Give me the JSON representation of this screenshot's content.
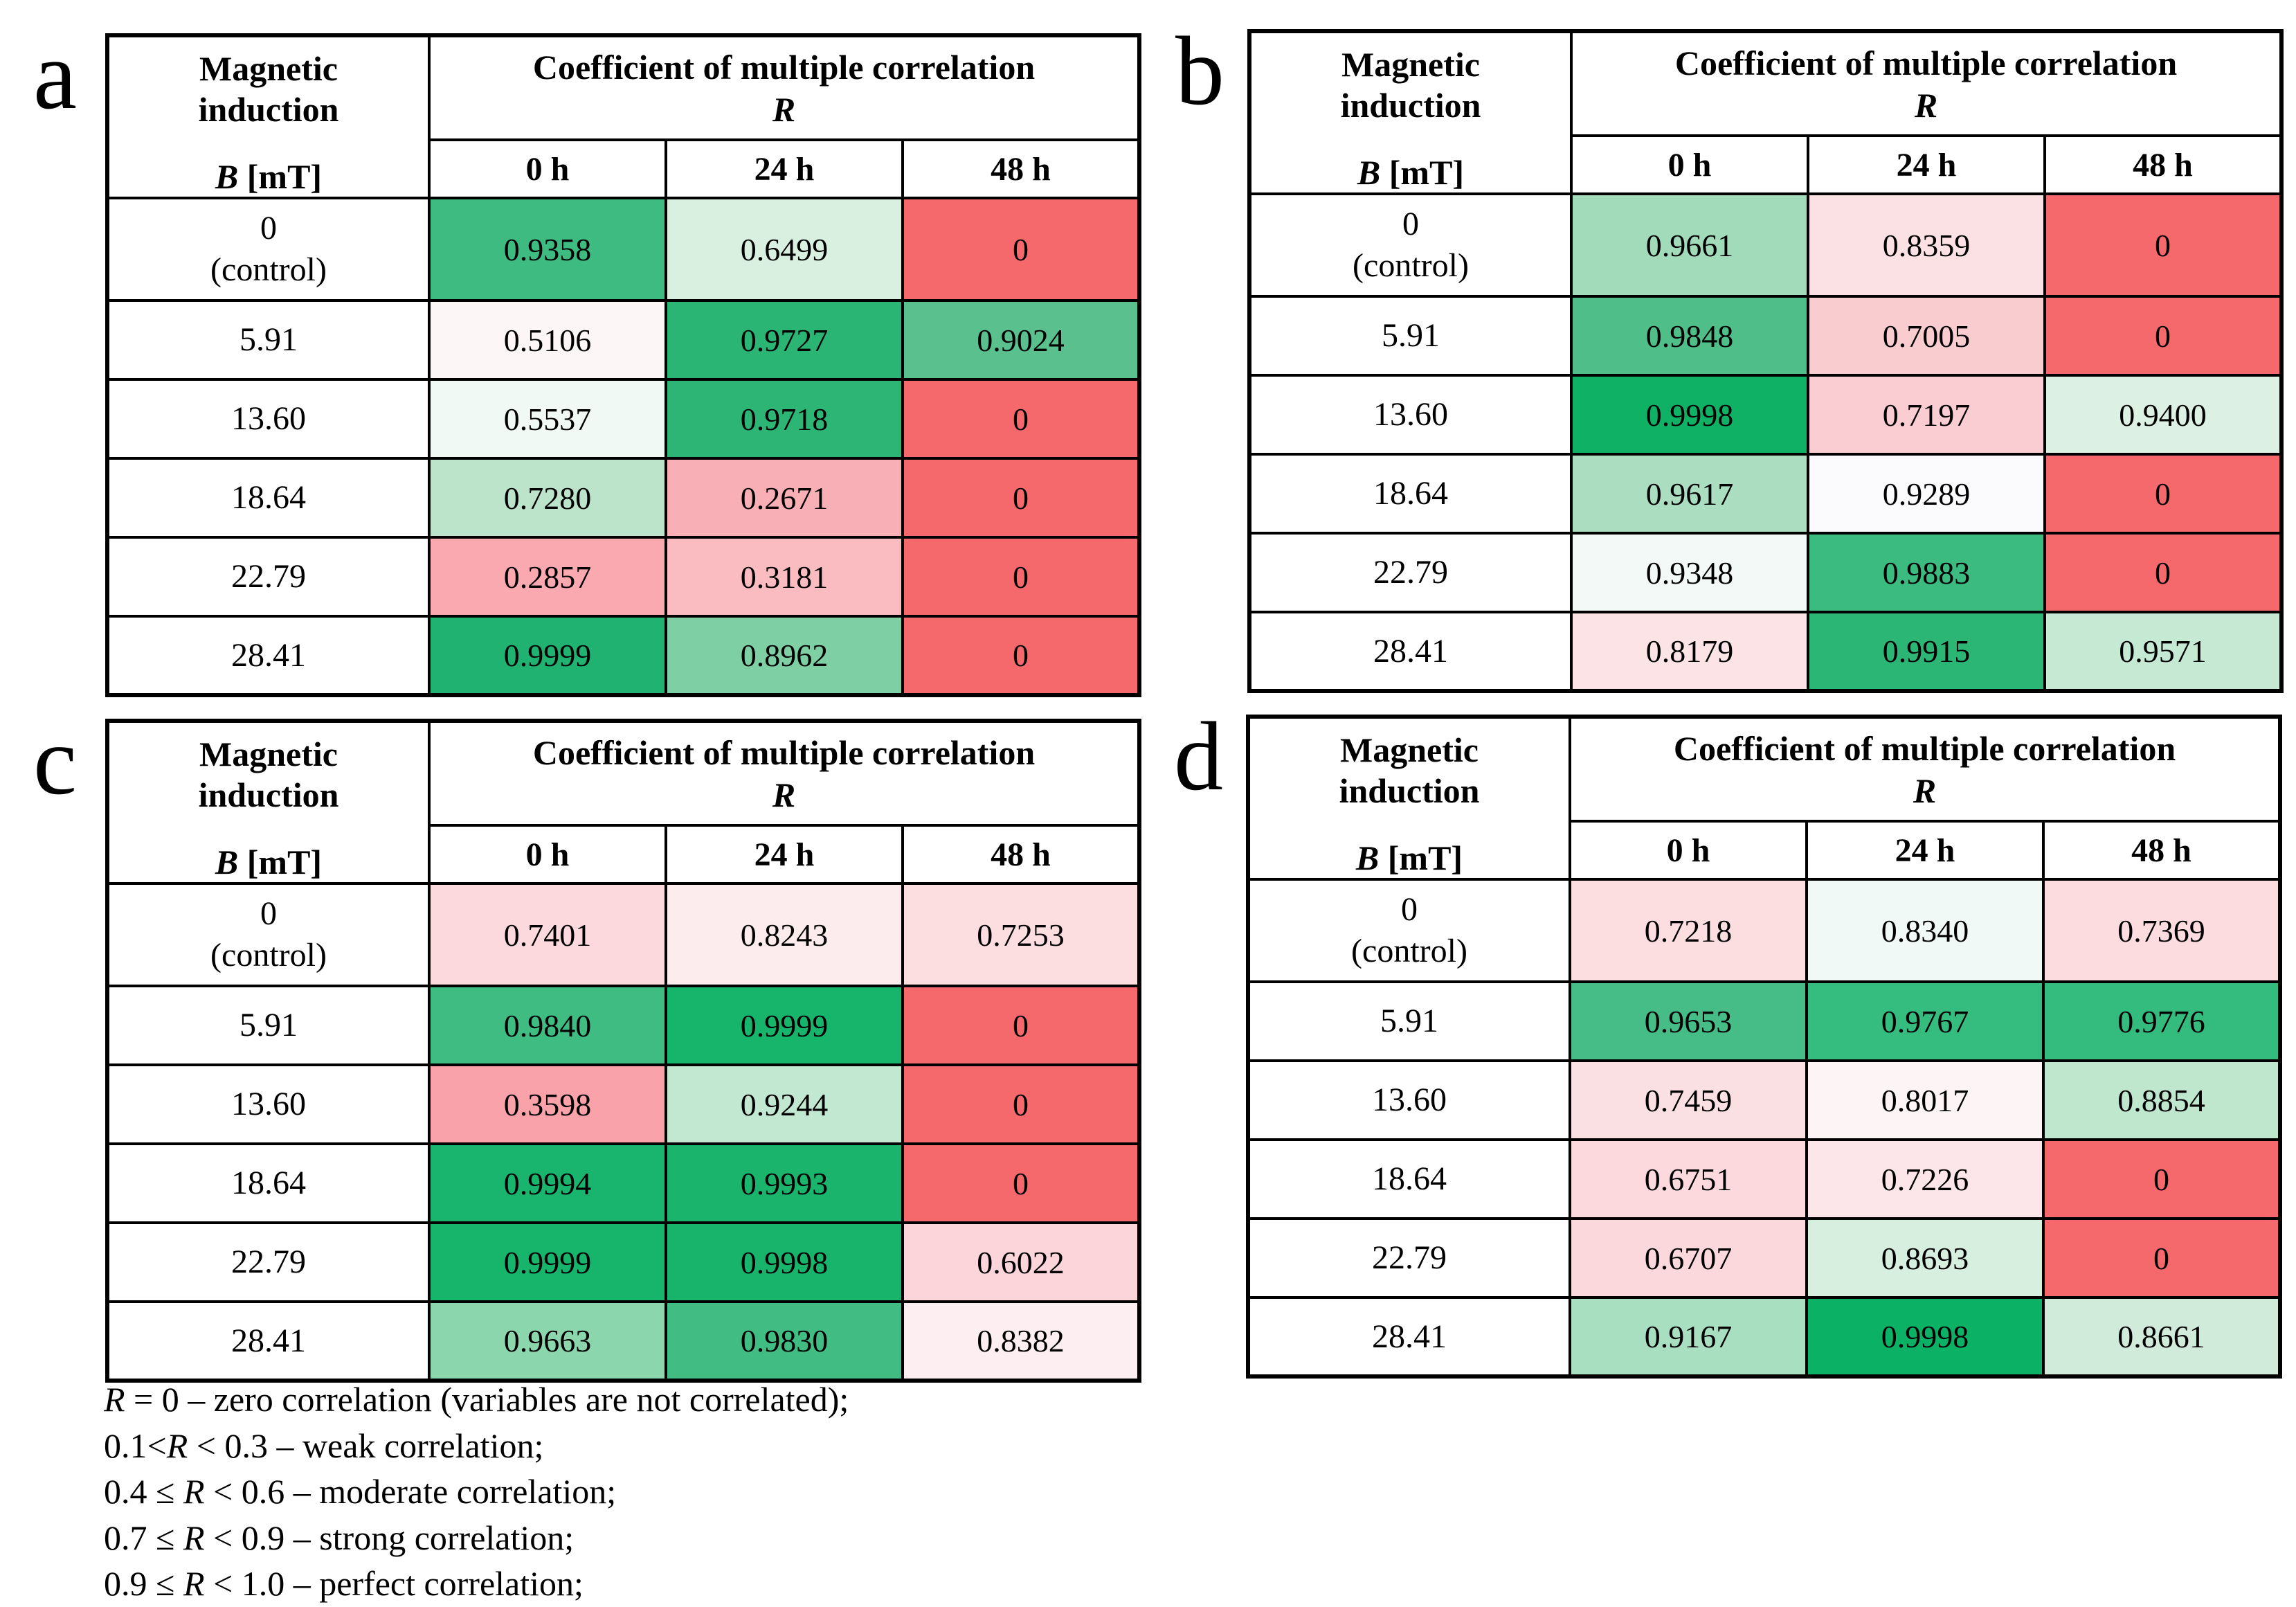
{
  "figure": {
    "background": "#ffffff",
    "panel_labels": [
      "a",
      "b",
      "c",
      "d"
    ]
  },
  "table_header": {
    "row_header_top": "Magnetic\ninduction",
    "row_header_bottom": "B [mT]",
    "title_line1": "Coefficient of multiple correlation",
    "title_line2": "R",
    "columns": [
      "0 h",
      "24 h",
      "48 h"
    ]
  },
  "chart_data": [
    {
      "type": "heatmap",
      "panel_label": "a",
      "title": "Coefficient of multiple correlation R",
      "row_label_header": "Magnetic induction B [mT]",
      "columns": [
        "0 h",
        "24 h",
        "48 h"
      ],
      "row_labels": [
        "0\n(control)",
        "5.91",
        "13.60",
        "18.64",
        "22.79",
        "28.41"
      ],
      "values": [
        [
          0.9358,
          0.6499,
          0
        ],
        [
          0.5106,
          0.9727,
          0.9024
        ],
        [
          0.5537,
          0.9718,
          0
        ],
        [
          0.728,
          0.2671,
          0
        ],
        [
          0.2857,
          0.3181,
          0
        ],
        [
          0.9999,
          0.8962,
          0
        ]
      ],
      "display": [
        [
          "0.9358",
          "0.6499",
          "0"
        ],
        [
          "0.5106",
          "0.9727",
          "0.9024"
        ],
        [
          "0.5537",
          "0.9718",
          "0"
        ],
        [
          "0.7280",
          "0.2671",
          "0"
        ],
        [
          "0.2857",
          "0.3181",
          "0"
        ],
        [
          "0.9999",
          "0.8962",
          "0"
        ]
      ],
      "cell_colors": [
        [
          "#3EBB81",
          "#D9F0E1",
          "#F5696C"
        ],
        [
          "#FDF6F7",
          "#2BB574",
          "#5AC18E"
        ],
        [
          "#F1F9F4",
          "#2CB575",
          "#F5696C"
        ],
        [
          "#BCE4CB",
          "#F9AFB6",
          "#F5696C"
        ],
        [
          "#F9A9AF",
          "#FABCC1",
          "#F5696C"
        ],
        [
          "#20B271",
          "#7ED0A4",
          "#F5696C"
        ]
      ]
    },
    {
      "type": "heatmap",
      "panel_label": "b",
      "title": "Coefficient of multiple correlation R",
      "row_label_header": "Magnetic induction B [mT]",
      "columns": [
        "0 h",
        "24 h",
        "48 h"
      ],
      "row_labels": [
        "0\n(control)",
        "5.91",
        "13.60",
        "18.64",
        "22.79",
        "28.41"
      ],
      "values": [
        [
          0.9661,
          0.8359,
          0
        ],
        [
          0.9848,
          0.7005,
          0
        ],
        [
          0.9998,
          0.7197,
          0.94
        ],
        [
          0.9617,
          0.9289,
          0
        ],
        [
          0.9348,
          0.9883,
          0
        ],
        [
          0.8179,
          0.9915,
          0.9571
        ]
      ],
      "display": [
        [
          "0.9661",
          "0.8359",
          "0"
        ],
        [
          "0.9848",
          "0.7005",
          "0"
        ],
        [
          "0.9998",
          "0.7197",
          "0.9400"
        ],
        [
          "0.9617",
          "0.9289",
          "0"
        ],
        [
          "0.9348",
          "0.9883",
          "0"
        ],
        [
          "0.8179",
          "0.9915",
          "0.9571"
        ]
      ],
      "cell_colors": [
        [
          "#A1DBBA",
          "#FBE0E4",
          "#F5696C"
        ],
        [
          "#50BE88",
          "#F9CCD0",
          "#F5696C"
        ],
        [
          "#0FB164",
          "#F9CDD1",
          "#DCF0E4"
        ],
        [
          "#ABDEC1",
          "#FBFAFC",
          "#F5696C"
        ],
        [
          "#F2F9F6",
          "#3CBB80",
          "#F5696C"
        ],
        [
          "#FBE3E6",
          "#2CB676",
          "#C6E9D3"
        ]
      ]
    },
    {
      "type": "heatmap",
      "panel_label": "c",
      "title": "Coefficient of multiple correlation R",
      "row_label_header": "Magnetic induction B [mT]",
      "columns": [
        "0 h",
        "24 h",
        "48 h"
      ],
      "row_labels": [
        "0\n(control)",
        "5.91",
        "13.60",
        "18.64",
        "22.79",
        "28.41"
      ],
      "values": [
        [
          0.7401,
          0.8243,
          0.7253
        ],
        [
          0.984,
          0.9999,
          0
        ],
        [
          0.3598,
          0.9244,
          0
        ],
        [
          0.9994,
          0.9993,
          0
        ],
        [
          0.9999,
          0.9998,
          0.6022
        ],
        [
          0.9663,
          0.983,
          0.8382
        ]
      ],
      "display": [
        [
          "0.7401",
          "0.8243",
          "0.7253"
        ],
        [
          "0.9840",
          "0.9999",
          "0"
        ],
        [
          "0.3598",
          "0.9244",
          "0"
        ],
        [
          "0.9994",
          "0.9993",
          "0"
        ],
        [
          "0.9999",
          "0.9998",
          "0.6022"
        ],
        [
          "0.9663",
          "0.9830",
          "0.8382"
        ]
      ],
      "cell_colors": [
        [
          "#FBD9DD",
          "#FDECEE",
          "#FCDDE0"
        ],
        [
          "#3FBC82",
          "#17B46C",
          "#F5696C"
        ],
        [
          "#F9A2A9",
          "#C2E8D1",
          "#F5696C"
        ],
        [
          "#19B46D",
          "#1AB46D",
          "#F5696C"
        ],
        [
          "#17B46C",
          "#18B46C",
          "#FBD5D9"
        ],
        [
          "#8CD6AD",
          "#41BC83",
          "#FDEFF1"
        ]
      ]
    },
    {
      "type": "heatmap",
      "panel_label": "d",
      "title": "Coefficient of multiple correlation R",
      "row_label_header": "Magnetic induction B [mT]",
      "columns": [
        "0 h",
        "24 h",
        "48 h"
      ],
      "row_labels": [
        "0\n(control)",
        "5.91",
        "13.60",
        "18.64",
        "22.79",
        "28.41"
      ],
      "values": [
        [
          0.7218,
          0.834,
          0.7369
        ],
        [
          0.9653,
          0.9767,
          0.9776
        ],
        [
          0.7459,
          0.8017,
          0.8854
        ],
        [
          0.6751,
          0.7226,
          0
        ],
        [
          0.6707,
          0.8693,
          0
        ],
        [
          0.9167,
          0.9998,
          0.8661
        ]
      ],
      "display": [
        [
          "0.7218",
          "0.8340",
          "0.7369"
        ],
        [
          "0.9653",
          "0.9767",
          "0.9776"
        ],
        [
          "0.7459",
          "0.8017",
          "0.8854"
        ],
        [
          "0.6751",
          "0.7226",
          "0"
        ],
        [
          "0.6707",
          "0.8693",
          "0"
        ],
        [
          "0.9167",
          "0.9998",
          "0.8661"
        ]
      ],
      "cell_colors": [
        [
          "#FCDEE1",
          "#F1F9F7",
          "#FCDCDF"
        ],
        [
          "#46BD86",
          "#35BD80",
          "#34BC7F"
        ],
        [
          "#FBE0E3",
          "#FDF4F5",
          "#BFE7CE"
        ],
        [
          "#FBD9DC",
          "#FCE6E9",
          "#F5696C"
        ],
        [
          "#FBD8DB",
          "#D7EFDF",
          "#F5696C"
        ],
        [
          "#A9DFC1",
          "#0BB265",
          "#D0EBDA"
        ]
      ]
    }
  ],
  "legend": {
    "lines": [
      "R = 0 – zero correlation (variables are not correlated);",
      "0.1<R < 0.3 – weak correlation;",
      "0.4 ≤ R < 0.6 – moderate correlation;",
      "0.7 ≤ R < 0.9 – strong correlation;",
      "0.9 ≤ R < 1.0 – perfect correlation;"
    ]
  },
  "colors": {
    "zero_red": "#F5696C",
    "max_green": "#0FB164",
    "mid_white": "#FCFCFF",
    "border": "#000000",
    "text": "#000000",
    "background": "#FFFFFF"
  }
}
